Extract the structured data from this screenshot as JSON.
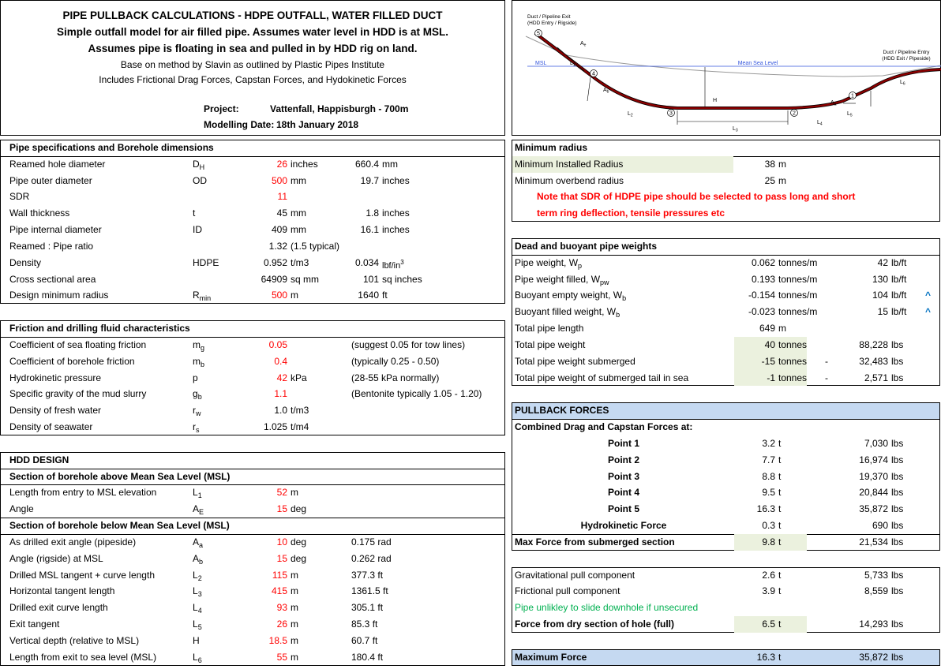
{
  "header": {
    "title_lines": [
      "PIPE PULLBACK CALCULATIONS - HDPE OUTFALL, WATER FILLED DUCT",
      "Simple outfall model for air filled pipe. Assumes water level in HDD is at MSL.",
      "Assumes pipe is floating in sea and pulled in by HDD rig on land.",
      "Base on method by Slavin as outlined by Plastic Pipes Institute",
      "Includes Frictional Drag Forces, Capstan Forces, and Hydokinetic Forces"
    ],
    "project_label": "Project:",
    "project": "Vattenfall, Happisburgh - 700m",
    "date_label": "Modelling Date:",
    "date": "18th January 2018"
  },
  "pipe_specs": {
    "title": "Pipe specifications and Borehole dimensions",
    "rows": [
      {
        "label": "Reamed hole diameter",
        "symbol": "D",
        "sub": "H",
        "value": "26",
        "unit": "inches",
        "color": "#ff0000",
        "value2": "660.4",
        "unit2": "mm"
      },
      {
        "label": "Pipe outer diameter",
        "symbol": "OD",
        "value": "500",
        "unit": "mm",
        "color": "#ff0000",
        "value2": "19.7",
        "unit2": "inches"
      },
      {
        "label": "SDR",
        "value": "11",
        "color": "#ff0000"
      },
      {
        "label": "Wall thickness",
        "symbol": "t",
        "value": "45",
        "unit": "mm",
        "value2": "1.8",
        "unit2": "inches"
      },
      {
        "label": "Pipe internal diameter",
        "symbol": "ID",
        "value": "409",
        "unit": "mm",
        "value2": "16.1",
        "unit2": "inches"
      },
      {
        "label": "Reamed : Pipe ratio",
        "value": "1.32",
        "unit": "(1.5 typical)"
      },
      {
        "label": "Density",
        "symbol": "HDPE",
        "value": "0.952",
        "unit": "t/m3",
        "value2": "0.034",
        "unit2": "lbf/in",
        "sup2": "3"
      },
      {
        "label": "Cross sectional area",
        "value": "64909",
        "unit": "sq mm",
        "value2": "101",
        "unit2": "sq inches"
      },
      {
        "label": "Design minimum radius",
        "symbol": "R",
        "sub": "min",
        "value": "500",
        "unit": "m",
        "color": "#ff0000",
        "value2": "1640",
        "unit2": "ft"
      }
    ]
  },
  "friction": {
    "title": "Friction and drilling fluid characteristics",
    "rows": [
      {
        "label": "Coefficient of sea floating friction",
        "symbol": "m",
        "sub": "g",
        "value": "0.05",
        "color": "#ff0000",
        "note": "(suggest 0.05 for tow lines)"
      },
      {
        "label": "Coefficient of borehole friction",
        "symbol": "m",
        "sub": "b",
        "value": "0.4",
        "color": "#ff0000",
        "note": "(typically 0.25 - 0.50)"
      },
      {
        "label": "Hydrokinetic pressure",
        "symbol": "p",
        "value": "42",
        "unit": "kPa",
        "color": "#ff0000",
        "note": "(28-55 kPa normally)"
      },
      {
        "label": "Specific gravity of the mud slurry",
        "symbol": "g",
        "sub": "b",
        "value": "1.1",
        "color": "#ff0000",
        "note": "(Bentonite typically 1.05 - 1.20)"
      },
      {
        "label": "Density of fresh water",
        "symbol": "r",
        "sub": "w",
        "value": "1.0",
        "unit": "t/m3"
      },
      {
        "label": "Density of seawater",
        "symbol": "r",
        "sub": "s",
        "value": "1.025",
        "unit": "t/m4"
      }
    ]
  },
  "hdd": {
    "title": "HDD DESIGN",
    "above": {
      "title": "Section of borehole above Mean Sea Level (MSL)",
      "rows": [
        {
          "label": "Length from entry to MSL elevation",
          "symbol": "L",
          "sub": "1",
          "value": "52",
          "unit": "m",
          "color": "#ff0000"
        },
        {
          "label": "Angle",
          "symbol": "A",
          "sub": "E",
          "value": "15",
          "unit": "deg",
          "color": "#ff0000"
        }
      ]
    },
    "below": {
      "title": "Section of borehole below Mean Sea Level (MSL)",
      "rows": [
        {
          "label": "As drilled exit angle (pipeside)",
          "symbol": "A",
          "sub": "a",
          "value": "10",
          "unit": "deg",
          "color": "#ff0000",
          "note": "0.175 rad"
        },
        {
          "label": "Angle (rigside) at MSL",
          "symbol": "A",
          "sub": "b",
          "value": "15",
          "unit": "deg",
          "color": "#ff0000",
          "note": "0.262 rad"
        },
        {
          "label": "Drilled MSL tangent + curve length",
          "symbol": "L",
          "sub": "2",
          "value": "115",
          "unit": "m",
          "color": "#ff0000",
          "note": "377.3 ft"
        },
        {
          "label": "Horizontal tangent length",
          "symbol": "L",
          "sub": "3",
          "value": "415",
          "unit": "m",
          "color": "#ff0000",
          "note": "1361.5 ft"
        },
        {
          "label": "Drilled exit curve length",
          "symbol": "L",
          "sub": "4",
          "value": "93",
          "unit": "m",
          "color": "#ff0000",
          "note": "305.1 ft"
        },
        {
          "label": "Exit tangent",
          "symbol": "L",
          "sub": "5",
          "value": "26",
          "unit": "m",
          "color": "#ff0000",
          "note": "85.3 ft"
        },
        {
          "label": "Vertical depth (relative to MSL)",
          "symbol": "H",
          "value": "18.5",
          "unit": "m",
          "color": "#ff0000",
          "note": "60.7 ft"
        },
        {
          "label": "Length from exit to sea level (MSL)",
          "symbol": "L",
          "sub": "6",
          "value": "55",
          "unit": "m",
          "color": "#ff0000",
          "note": "180.4 ft"
        }
      ]
    }
  },
  "diagram": {
    "exit_label": [
      "Duct / Pipeline Exit",
      "(HDD Entry / Rigside)"
    ],
    "entry_label": [
      "Duct / Pipeline Entry",
      "(HDD Exit / Pipeside)"
    ],
    "msl": "MSL",
    "msl_full": "Mean Sea Level",
    "points": [
      "1",
      "2",
      "3",
      "4",
      "5"
    ],
    "symbols": [
      {
        "text": "A",
        "sub": "e"
      },
      {
        "text": "L",
        "sub": "1"
      },
      {
        "text": "A",
        "sub": "b"
      },
      {
        "text": "L",
        "sub": "2"
      },
      {
        "text": "H"
      },
      {
        "text": "L",
        "sub": "3"
      },
      {
        "text": "L",
        "sub": "4"
      },
      {
        "text": "A",
        "sub": "a"
      },
      {
        "text": "L",
        "sub": "5"
      },
      {
        "text": "L",
        "sub": "6"
      }
    ]
  },
  "min_radius": {
    "title": "Minimum radius",
    "rows": [
      {
        "label": "Minimum Installed Radius",
        "value": "38",
        "unit": "m",
        "label_fill": "#ebf1de"
      },
      {
        "label": "Minimum overbend radius",
        "value": "25",
        "unit": "m"
      }
    ],
    "note": [
      "Note that SDR of HDPE pipe should be selected to pass long and short",
      "term ring deflection, tensile pressures etc"
    ],
    "note_color": "#ff0000"
  },
  "weights": {
    "title": "Dead and buoyant pipe weights",
    "rows": [
      {
        "label": "Pipe weight, W",
        "sub": "p",
        "value": "0.062",
        "unit": "tonnes/m",
        "value2": "42",
        "unit2": "lb/ft"
      },
      {
        "label": "Pipe weight filled, W",
        "sub": "pw",
        "value": "0.193",
        "unit": "tonnes/m",
        "value2": "130",
        "unit2": "lb/ft"
      },
      {
        "label": "Buoyant empty weight, W",
        "sub": "b",
        "value": "-0.154",
        "unit": "tonnes/m",
        "value2": "104",
        "unit2": "lb/ft",
        "mark": "^"
      },
      {
        "label": "Buoyant filled weight, W",
        "sub": "b",
        "value": "-0.023",
        "unit": "tonnes/m",
        "value2": "15",
        "unit2": "lb/ft",
        "mark": "^"
      },
      {
        "label": "Total pipe length",
        "value": "649",
        "unit": "m"
      },
      {
        "label": "Total pipe weight",
        "value": "40",
        "unit": "tonnes",
        "value2": "88,228",
        "unit2": "lbs",
        "value_fill": "#ebf1de"
      },
      {
        "label": "Total pipe weight submerged",
        "value": "-15",
        "unit": "tonnes",
        "dash": "-",
        "value2": "32,483",
        "unit2": "lbs",
        "value_fill": "#ebf1de"
      },
      {
        "label": "Total pipe weight of submerged tail in sea",
        "value": "-1",
        "unit": "tonnes",
        "dash": "-",
        "value2": "2,571",
        "unit2": "lbs",
        "value_fill": "#ebf1de"
      }
    ]
  },
  "pullback": {
    "title": "PULLBACK FORCES",
    "title_fill": "#c5d9f1",
    "subtitle": "Combined Drag and Capstan Forces at:",
    "rows": [
      {
        "label": "Point 1",
        "value": "3.2",
        "unit": "t",
        "value2": "7,030",
        "unit2": "lbs"
      },
      {
        "label": "Point 2",
        "value": "7.7",
        "unit": "t",
        "value2": "16,974",
        "unit2": "lbs"
      },
      {
        "label": "Point 3",
        "value": "8.8",
        "unit": "t",
        "value2": "19,370",
        "unit2": "lbs"
      },
      {
        "label": "Point 4",
        "value": "9.5",
        "unit": "t",
        "value2": "20,844",
        "unit2": "lbs"
      },
      {
        "label": "Point 5",
        "value": "16.3",
        "unit": "t",
        "value2": "35,872",
        "unit2": "lbs"
      },
      {
        "label": "Hydrokinetic Force",
        "value": "0.3",
        "unit": "t",
        "value2": "690",
        "unit2": "lbs"
      }
    ],
    "max": {
      "label": "Max Force from submerged section",
      "value": "9.8",
      "unit": "t",
      "value2": "21,534",
      "unit2": "lbs",
      "value_fill": "#ebf1de"
    }
  },
  "components": {
    "rows": [
      {
        "label": "Gravitational pull component",
        "value": "2.6",
        "unit": "t",
        "value2": "5,733",
        "unit2": "lbs"
      },
      {
        "label": "Frictional pull component",
        "value": "3.9",
        "unit": "t",
        "value2": "8,559",
        "unit2": "lbs"
      }
    ],
    "note": "Pipe unlikley to slide downhole if unsecured",
    "note_color": "#00b050",
    "dry": {
      "label": "Force from dry section of hole (full)",
      "value": "6.5",
      "unit": "t",
      "value2": "14,293",
      "unit2": "lbs",
      "value_fill": "#ebf1de"
    }
  },
  "maximum": {
    "label": "Maximum Force",
    "value": "16.3",
    "unit": "t",
    "value2": "35,872",
    "unit2": "lbs",
    "row_fill": "#c5d9f1"
  }
}
